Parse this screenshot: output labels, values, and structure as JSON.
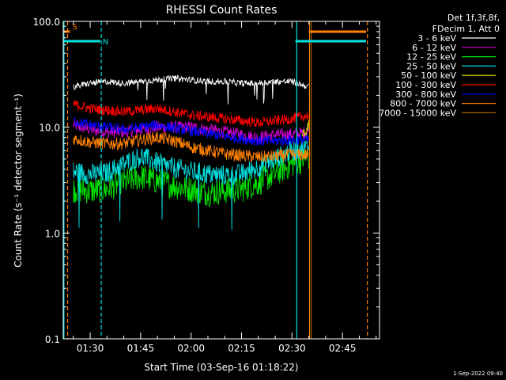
{
  "chart_data": {
    "type": "line",
    "title": "RHESSI Count Rates",
    "xlabel": "Start Time (03-Sep-16 01:18:22)",
    "ylabel": "Count Rate (s⁻¹ detector segment⁻¹)",
    "yscale": "log",
    "ylim": [
      0.1,
      100
    ],
    "xlim_minutes": [
      82,
      176
    ],
    "y_tick_labels": [
      {
        "value": 0.1,
        "label": "0.1"
      },
      {
        "value": 1,
        "label": "1.0"
      },
      {
        "value": 10,
        "label": "10.0"
      },
      {
        "value": 100,
        "label": "100.0"
      }
    ],
    "x_tick_labels": [
      {
        "minute": 90,
        "label": "01:30"
      },
      {
        "minute": 105,
        "label": "01:45"
      },
      {
        "minute": 120,
        "label": "02:00"
      },
      {
        "minute": 135,
        "label": "02:15"
      },
      {
        "minute": 150,
        "label": "02:30"
      },
      {
        "minute": 165,
        "label": "02:45"
      }
    ],
    "legend_header": [
      "Det 1f,3f,8f,",
      "FDecim 1, Att 0"
    ],
    "legend_position": "top-right, outside plot",
    "series": [
      {
        "name": "3 - 6 keV",
        "color": "#ffffff",
        "x": [
          85,
          90,
          95,
          100,
          105,
          110,
          115,
          120,
          125,
          130,
          135,
          140,
          145,
          150,
          155
        ],
        "values": [
          24,
          26,
          27,
          26,
          27,
          28,
          29,
          28,
          27,
          27,
          26,
          26,
          27,
          27,
          24
        ]
      },
      {
        "name": "6 - 12 keV",
        "color": "#d400d4",
        "x": [
          85,
          90,
          95,
          100,
          105,
          110,
          115,
          120,
          125,
          130,
          135,
          140,
          145,
          150,
          155
        ],
        "values": [
          10.5,
          9.5,
          9.0,
          9.0,
          9.5,
          10,
          10,
          10,
          9.5,
          9.0,
          8.5,
          8.0,
          8.5,
          8.5,
          9.0
        ]
      },
      {
        "name": "12 - 25 keV",
        "color": "#00e000",
        "x": [
          85,
          90,
          95,
          100,
          105,
          110,
          115,
          120,
          125,
          130,
          135,
          140,
          145,
          150,
          155
        ],
        "values": [
          2.6,
          2.5,
          2.6,
          3.0,
          3.4,
          3.1,
          2.8,
          2.6,
          2.4,
          2.5,
          2.6,
          3.0,
          3.6,
          4.5,
          5.2
        ]
      },
      {
        "name": "25 - 50 keV",
        "color": "#00e0e0",
        "x": [
          85,
          90,
          95,
          100,
          105,
          110,
          115,
          120,
          125,
          130,
          135,
          140,
          145,
          150,
          155
        ],
        "values": [
          3.8,
          3.6,
          3.7,
          4.5,
          5.3,
          4.6,
          4.1,
          3.8,
          3.6,
          3.5,
          3.6,
          4.2,
          5.0,
          6.0,
          6.5
        ]
      },
      {
        "name": "50 - 100 keV",
        "color": "#e0e000",
        "x": [
          153,
          154,
          155
        ],
        "values": [
          8.0,
          9.0,
          10.5
        ]
      },
      {
        "name": "100 - 300 keV",
        "color": "#ff0000",
        "x": [
          85,
          90,
          95,
          100,
          105,
          110,
          115,
          120,
          125,
          130,
          135,
          140,
          145,
          150,
          155
        ],
        "values": [
          16.5,
          15.0,
          14.5,
          14.0,
          14.5,
          15.0,
          14.0,
          13.0,
          12.5,
          12.0,
          11.5,
          11.0,
          11.5,
          12.0,
          13.0
        ]
      },
      {
        "name": "300 - 800 keV",
        "color": "#0000ff",
        "x": [
          85,
          90,
          95,
          100,
          105,
          110,
          115,
          120,
          125,
          130,
          135,
          140,
          145,
          150,
          155
        ],
        "values": [
          11.5,
          10.5,
          10.0,
          9.5,
          10.0,
          10.5,
          9.8,
          9.2,
          8.7,
          8.2,
          7.8,
          7.4,
          7.4,
          7.6,
          7.6
        ]
      },
      {
        "name": "800 - 7000 keV",
        "color": "#ff8000",
        "x": [
          85,
          90,
          95,
          100,
          105,
          110,
          115,
          120,
          125,
          130,
          135,
          140,
          145,
          150,
          155
        ],
        "values": [
          7.8,
          7.2,
          7.0,
          7.0,
          7.6,
          8.0,
          7.4,
          6.5,
          6.0,
          5.6,
          5.4,
          5.2,
          5.3,
          5.5,
          5.5
        ]
      },
      {
        "name": "7000 - 15000 keV",
        "color": "#a06000",
        "x": [],
        "values": []
      }
    ],
    "attenuator_flags": [
      {
        "label": "S",
        "color": "#ff8000",
        "start_minute": 82,
        "end_minute": 84,
        "level": 80
      },
      {
        "label": "N",
        "color": "#00e0e0",
        "start_minute": 82,
        "end_minute": 93,
        "level": 65
      },
      {
        "label": "",
        "color": "#00e0e0",
        "start_minute": 151,
        "end_minute": 172,
        "level": 65
      },
      {
        "label": "",
        "color": "#ff8000",
        "start_minute": 155,
        "end_minute": 172,
        "level": 80
      }
    ],
    "vertical_markers": [
      {
        "minute": 82.2,
        "color": "#00e0e0",
        "style": "solid"
      },
      {
        "minute": 83.3,
        "color": "#ff8000",
        "style": "dashed"
      },
      {
        "minute": 93.3,
        "color": "#00e0e0",
        "style": "dashed"
      },
      {
        "minute": 151.4,
        "color": "#00e0e0",
        "style": "solid"
      },
      {
        "minute": 155.2,
        "color": "#ff8000",
        "style": "solid"
      },
      {
        "minute": 155.7,
        "color": "#a06000",
        "style": "solid"
      },
      {
        "minute": 172.4,
        "color": "#ff8000",
        "style": "dashed"
      }
    ],
    "data_end_minute": 156
  },
  "footer": {
    "timestamp": "1-Sep-2022 09:40"
  }
}
